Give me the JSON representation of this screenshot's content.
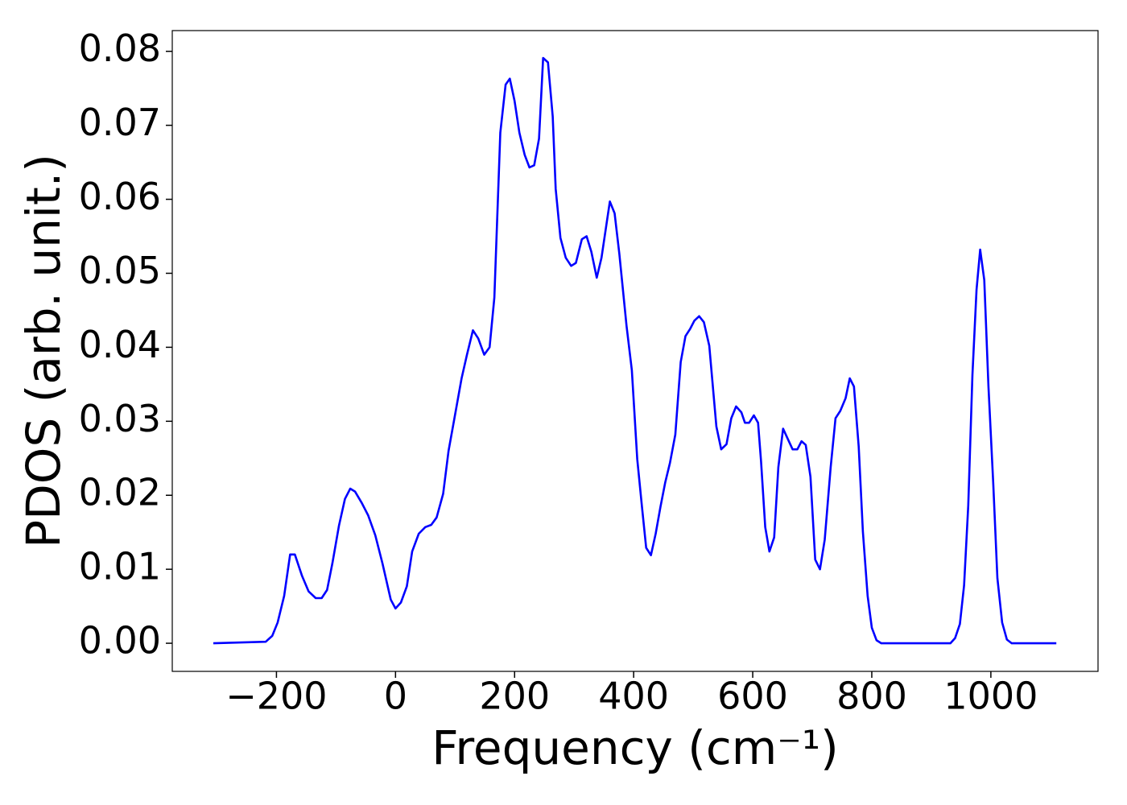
{
  "chart_data": {
    "type": "line",
    "xlabel": "Frequency (cm⁻¹)",
    "ylabel": "PDOS (arb. unit.)",
    "x": [
      -306,
      -218,
      -207,
      -198,
      -187,
      -177,
      -169,
      -157,
      -146,
      -134,
      -124,
      -115,
      -106,
      -95,
      -85,
      -76,
      -68,
      -57,
      -46,
      -34,
      -22,
      -8,
      0,
      9,
      19,
      28,
      39,
      50,
      60,
      69,
      80,
      89,
      99,
      111,
      120,
      130,
      139,
      149,
      158,
      166,
      176,
      185,
      192,
      200,
      208,
      217,
      225,
      233,
      241,
      248,
      256,
      264,
      269,
      277,
      286,
      295,
      303,
      313,
      321,
      329,
      338,
      346,
      355,
      360,
      368,
      376,
      388,
      397,
      406,
      414,
      421,
      429,
      437,
      445,
      453,
      461,
      470,
      479,
      487,
      495,
      502,
      510,
      518,
      527,
      539,
      547,
      556,
      564,
      572,
      581,
      587,
      594,
      602,
      609,
      614,
      621,
      628,
      636,
      643,
      651,
      659,
      667,
      675,
      682,
      689,
      697,
      705,
      713,
      721,
      731,
      739,
      747,
      756,
      763,
      770,
      778,
      785,
      793,
      800,
      808,
      816,
      932,
      940,
      948,
      955,
      962,
      969,
      976,
      982,
      989,
      996,
      1004,
      1011,
      1019,
      1027,
      1035,
      1110
    ],
    "series": [
      {
        "name": "PDOS",
        "color": "#0000ff",
        "values": [
          0,
          0.0002,
          0.001,
          0.0028,
          0.0064,
          0.012,
          0.012,
          0.0091,
          0.007,
          0.0061,
          0.0061,
          0.0072,
          0.0108,
          0.0159,
          0.0195,
          0.0209,
          0.0205,
          0.019,
          0.0173,
          0.0146,
          0.0108,
          0.0059,
          0.0047,
          0.0055,
          0.0077,
          0.0124,
          0.0148,
          0.0157,
          0.016,
          0.017,
          0.0202,
          0.026,
          0.0304,
          0.0358,
          0.039,
          0.0423,
          0.0412,
          0.039,
          0.04,
          0.0467,
          0.069,
          0.0755,
          0.0763,
          0.0733,
          0.069,
          0.066,
          0.0643,
          0.0646,
          0.0682,
          0.0791,
          0.0785,
          0.0712,
          0.0614,
          0.0548,
          0.0521,
          0.051,
          0.0514,
          0.0546,
          0.055,
          0.0529,
          0.0494,
          0.0521,
          0.057,
          0.0597,
          0.0581,
          0.0526,
          0.0429,
          0.0369,
          0.0249,
          0.0184,
          0.0129,
          0.0119,
          0.0148,
          0.0184,
          0.0217,
          0.0244,
          0.0282,
          0.038,
          0.0415,
          0.0425,
          0.0436,
          0.0442,
          0.0434,
          0.0402,
          0.0293,
          0.0262,
          0.0269,
          0.0304,
          0.032,
          0.0312,
          0.0298,
          0.0298,
          0.0308,
          0.0298,
          0.0246,
          0.0157,
          0.0124,
          0.0143,
          0.0238,
          0.029,
          0.0276,
          0.0262,
          0.0262,
          0.0273,
          0.0268,
          0.0225,
          0.0113,
          0.01,
          0.014,
          0.0238,
          0.0304,
          0.0314,
          0.0331,
          0.0358,
          0.0347,
          0.0266,
          0.0151,
          0.0064,
          0.0021,
          0.0004,
          0,
          0,
          0.0007,
          0.0026,
          0.0078,
          0.0186,
          0.0363,
          0.0478,
          0.0532,
          0.0491,
          0.0347,
          0.0217,
          0.0088,
          0.0028,
          0.0005,
          0,
          0
        ]
      }
    ],
    "xlim": [
      -375,
      1180
    ],
    "ylim": [
      -0.0038,
      0.0828
    ],
    "xticks": [
      {
        "value": -200,
        "label": "−200"
      },
      0,
      200,
      400,
      600,
      800,
      1000
    ],
    "yticks": [
      {
        "value": 0,
        "label": "0.00"
      },
      {
        "value": 0.01,
        "label": "0.01"
      },
      {
        "value": 0.02,
        "label": "0.02"
      },
      {
        "value": 0.03,
        "label": "0.03"
      },
      {
        "value": 0.04,
        "label": "0.04"
      },
      {
        "value": 0.05,
        "label": "0.05"
      },
      {
        "value": 0.06,
        "label": "0.06"
      },
      {
        "value": 0.07,
        "label": "0.07"
      },
      {
        "value": 0.08,
        "label": "0.08"
      }
    ],
    "grid": false
  }
}
